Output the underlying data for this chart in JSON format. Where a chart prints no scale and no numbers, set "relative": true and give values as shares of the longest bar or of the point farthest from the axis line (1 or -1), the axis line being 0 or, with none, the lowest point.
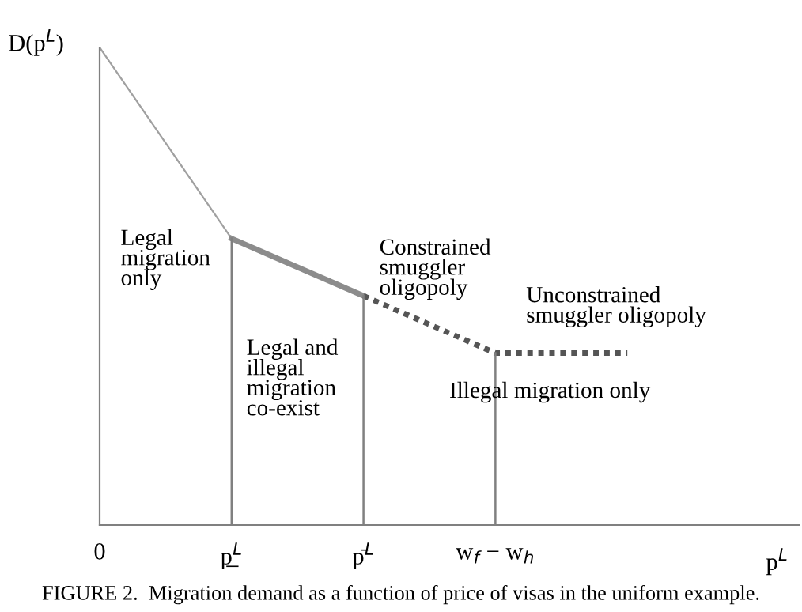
{
  "chart_data": {
    "type": "line",
    "relative": true,
    "xlabel": "p$^{L}$",
    "ylabel": "D(p$^{L}$)",
    "categories": [
      "0",
      "p̲$^{L}$",
      "p̄$^{L}$",
      "w$_{f}$ − w$_{h}$",
      null
    ],
    "series": [
      {
        "values": [
          1,
          0.6,
          null,
          null,
          null
        ],
        "color": "#a0a0a0",
        "line_style": "solid"
      },
      {
        "values": [
          null,
          0.6,
          0.48,
          null,
          null
        ],
        "color": "#8c8c8c",
        "line_style": "solid"
      },
      {
        "values": [
          null,
          null,
          0.48,
          0.36,
          0.36
        ],
        "color": "#555555",
        "line_style": "dotted"
      }
    ],
    "ref_lines": [
      {
        "axis": "x",
        "value": "p̲$^{L}$",
        "color": "#808080"
      },
      {
        "axis": "x",
        "value": "p̄$^{L}$",
        "color": "#808080"
      },
      {
        "axis": "x",
        "value": "w$_{f}$ − w$_{h}$",
        "color": "#808080"
      }
    ],
    "grid": false,
    "annotations": [
      "Legal\nmigration\nonly",
      "Legal and\nillegal\nmigration\nco-exist",
      "Constrained\nsmuggler\noligopoly",
      "Unconstrained\nsmuggler oligopoly",
      "Illegal migration only",
      "FIGURE 2.  Migration demand as a function of price of visas in the uniform example."
    ]
  }
}
